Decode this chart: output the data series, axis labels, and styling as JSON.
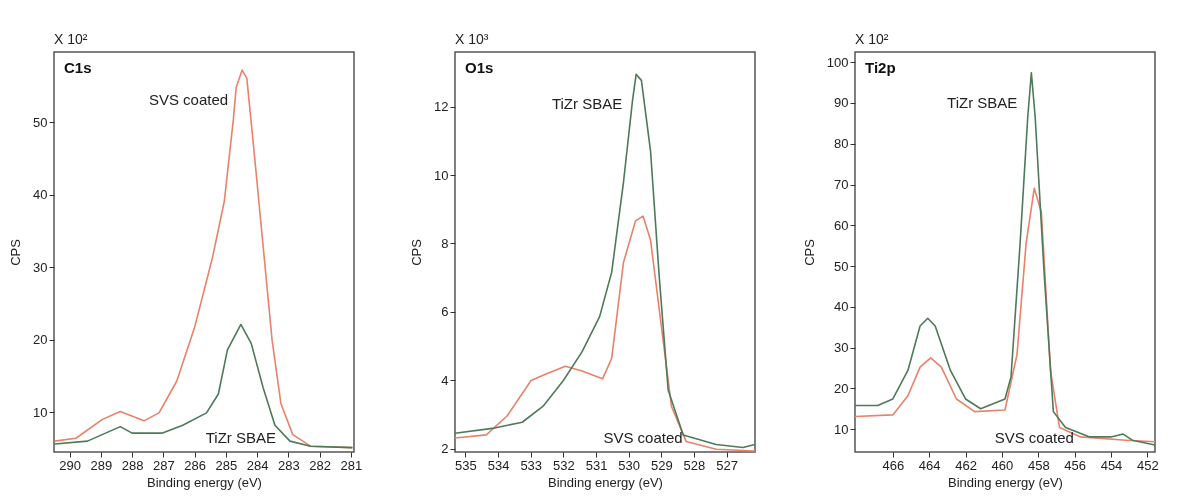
{
  "chart_data": [
    {
      "type": "line",
      "title": "C1s",
      "xlabel": "Binding energy (eV)",
      "ylabel": "CPS",
      "xlim": [
        290.5,
        280.9
      ],
      "xticks": [
        290,
        289,
        288,
        287,
        286,
        285,
        284,
        283,
        282,
        281
      ],
      "ylim": [
        4.5,
        59.7
      ],
      "yticks": [
        10,
        20,
        30,
        40,
        50
      ],
      "grid": false,
      "annotations": [
        "X 10²"
      ],
      "series": [
        {
          "name": "SVS coated",
          "color": "#e8826a",
          "x": [
            290.48,
            289.8,
            288.95,
            288.38,
            287.62,
            287.14,
            286.57,
            286.0,
            285.43,
            285.05,
            284.76,
            284.67,
            284.48,
            284.33,
            284.1,
            283.81,
            283.52,
            283.24,
            282.86,
            282.29,
            280.95
          ],
          "values": [
            6.0,
            6.4,
            9.0,
            10.1,
            8.8,
            9.9,
            14.3,
            21.7,
            31.3,
            39.1,
            50.4,
            54.8,
            57.2,
            56.1,
            46.1,
            33.0,
            19.9,
            11.2,
            6.9,
            5.3,
            5.1
          ]
        },
        {
          "name": "TiZr SBAE",
          "color": "#4e7a5a",
          "x": [
            290.48,
            289.43,
            288.38,
            288.0,
            287.05,
            286.38,
            285.62,
            285.24,
            284.95,
            284.52,
            284.19,
            283.81,
            283.43,
            282.95,
            282.29,
            280.95
          ],
          "values": [
            5.6,
            6.0,
            8.0,
            7.1,
            7.1,
            8.2,
            9.9,
            12.5,
            18.6,
            22.1,
            19.5,
            13.4,
            8.2,
            6.0,
            5.3,
            5.1
          ]
        }
      ]
    },
    {
      "type": "line",
      "title": "O1s",
      "xlabel": "Binding energy (eV)",
      "ylabel": "CPS",
      "xlim": [
        535.32,
        526.13
      ],
      "xticks": [
        535,
        534,
        533,
        532,
        531,
        530,
        529,
        528,
        527
      ],
      "ylim": [
        1.9,
        13.6
      ],
      "yticks": [
        2,
        4,
        6,
        8,
        10,
        12
      ],
      "grid": false,
      "annotations": [
        "X 10³"
      ],
      "series": [
        {
          "name": "SVS coated",
          "color": "#e8826a",
          "x": [
            535.32,
            534.36,
            533.72,
            532.99,
            532.53,
            531.94,
            531.43,
            530.8,
            530.52,
            530.16,
            529.79,
            529.56,
            529.33,
            529.06,
            528.69,
            528.24,
            527.32,
            526.13
          ],
          "values": [
            2.31,
            2.4,
            2.96,
            3.99,
            4.18,
            4.41,
            4.27,
            4.04,
            4.64,
            7.44,
            8.66,
            8.8,
            8.1,
            6.04,
            3.24,
            2.21,
            1.98,
            1.93
          ]
        },
        {
          "name": "TiZr SBAE",
          "color": "#4e7a5a",
          "x": [
            535.32,
            534.18,
            533.26,
            532.62,
            532.0,
            531.43,
            530.89,
            530.52,
            530.16,
            529.88,
            529.77,
            529.61,
            529.33,
            529.06,
            528.79,
            528.33,
            527.32,
            526.5,
            526.13
          ],
          "values": [
            2.45,
            2.59,
            2.77,
            3.24,
            3.99,
            4.83,
            5.86,
            7.16,
            9.78,
            12.2,
            12.95,
            12.77,
            10.7,
            6.98,
            3.71,
            2.4,
            2.12,
            2.03,
            2.12
          ]
        }
      ]
    },
    {
      "type": "line",
      "title": "Ti2p",
      "xlabel": "Binding energy (eV)",
      "ylabel": "CPS",
      "xlim": [
        468.08,
        451.58
      ],
      "xticks": [
        466,
        464,
        462,
        460,
        458,
        456,
        454,
        452
      ],
      "ylim": [
        4.4,
        102.5
      ],
      "yticks": [
        10,
        20,
        30,
        40,
        50,
        60,
        70,
        80,
        90,
        100
      ],
      "grid": false,
      "annotations": [
        "X 10²"
      ],
      "series": [
        {
          "name": "SVS coated",
          "color": "#e8826a",
          "x": [
            468.08,
            466.0,
            465.17,
            464.5,
            463.92,
            463.33,
            462.5,
            461.5,
            459.83,
            459.17,
            458.67,
            458.22,
            457.83,
            457.33,
            456.83,
            455.67,
            453.17,
            451.58
          ],
          "values": [
            13.1,
            13.5,
            18.2,
            25.2,
            27.5,
            25.2,
            17.4,
            14.3,
            14.7,
            28.3,
            55.5,
            69.1,
            63.2,
            24.4,
            10.4,
            8.1,
            7.3,
            6.9
          ]
        },
        {
          "name": "TiZr SBAE",
          "color": "#4e7a5a",
          "x": [
            468.08,
            466.83,
            466.0,
            465.17,
            464.5,
            464.08,
            463.67,
            462.83,
            462.0,
            461.17,
            459.83,
            459.5,
            459.0,
            458.58,
            458.38,
            458.17,
            457.67,
            457.17,
            456.5,
            455.17,
            454.0,
            453.33,
            452.83,
            451.58
          ],
          "values": [
            15.8,
            15.8,
            17.4,
            24.4,
            35.3,
            37.2,
            35.3,
            24.4,
            17.4,
            15.0,
            17.4,
            22.8,
            55.5,
            86.5,
            97.4,
            86.5,
            47.7,
            14.3,
            10.4,
            8.1,
            8.1,
            8.8,
            7.3,
            6.1
          ]
        }
      ]
    }
  ]
}
